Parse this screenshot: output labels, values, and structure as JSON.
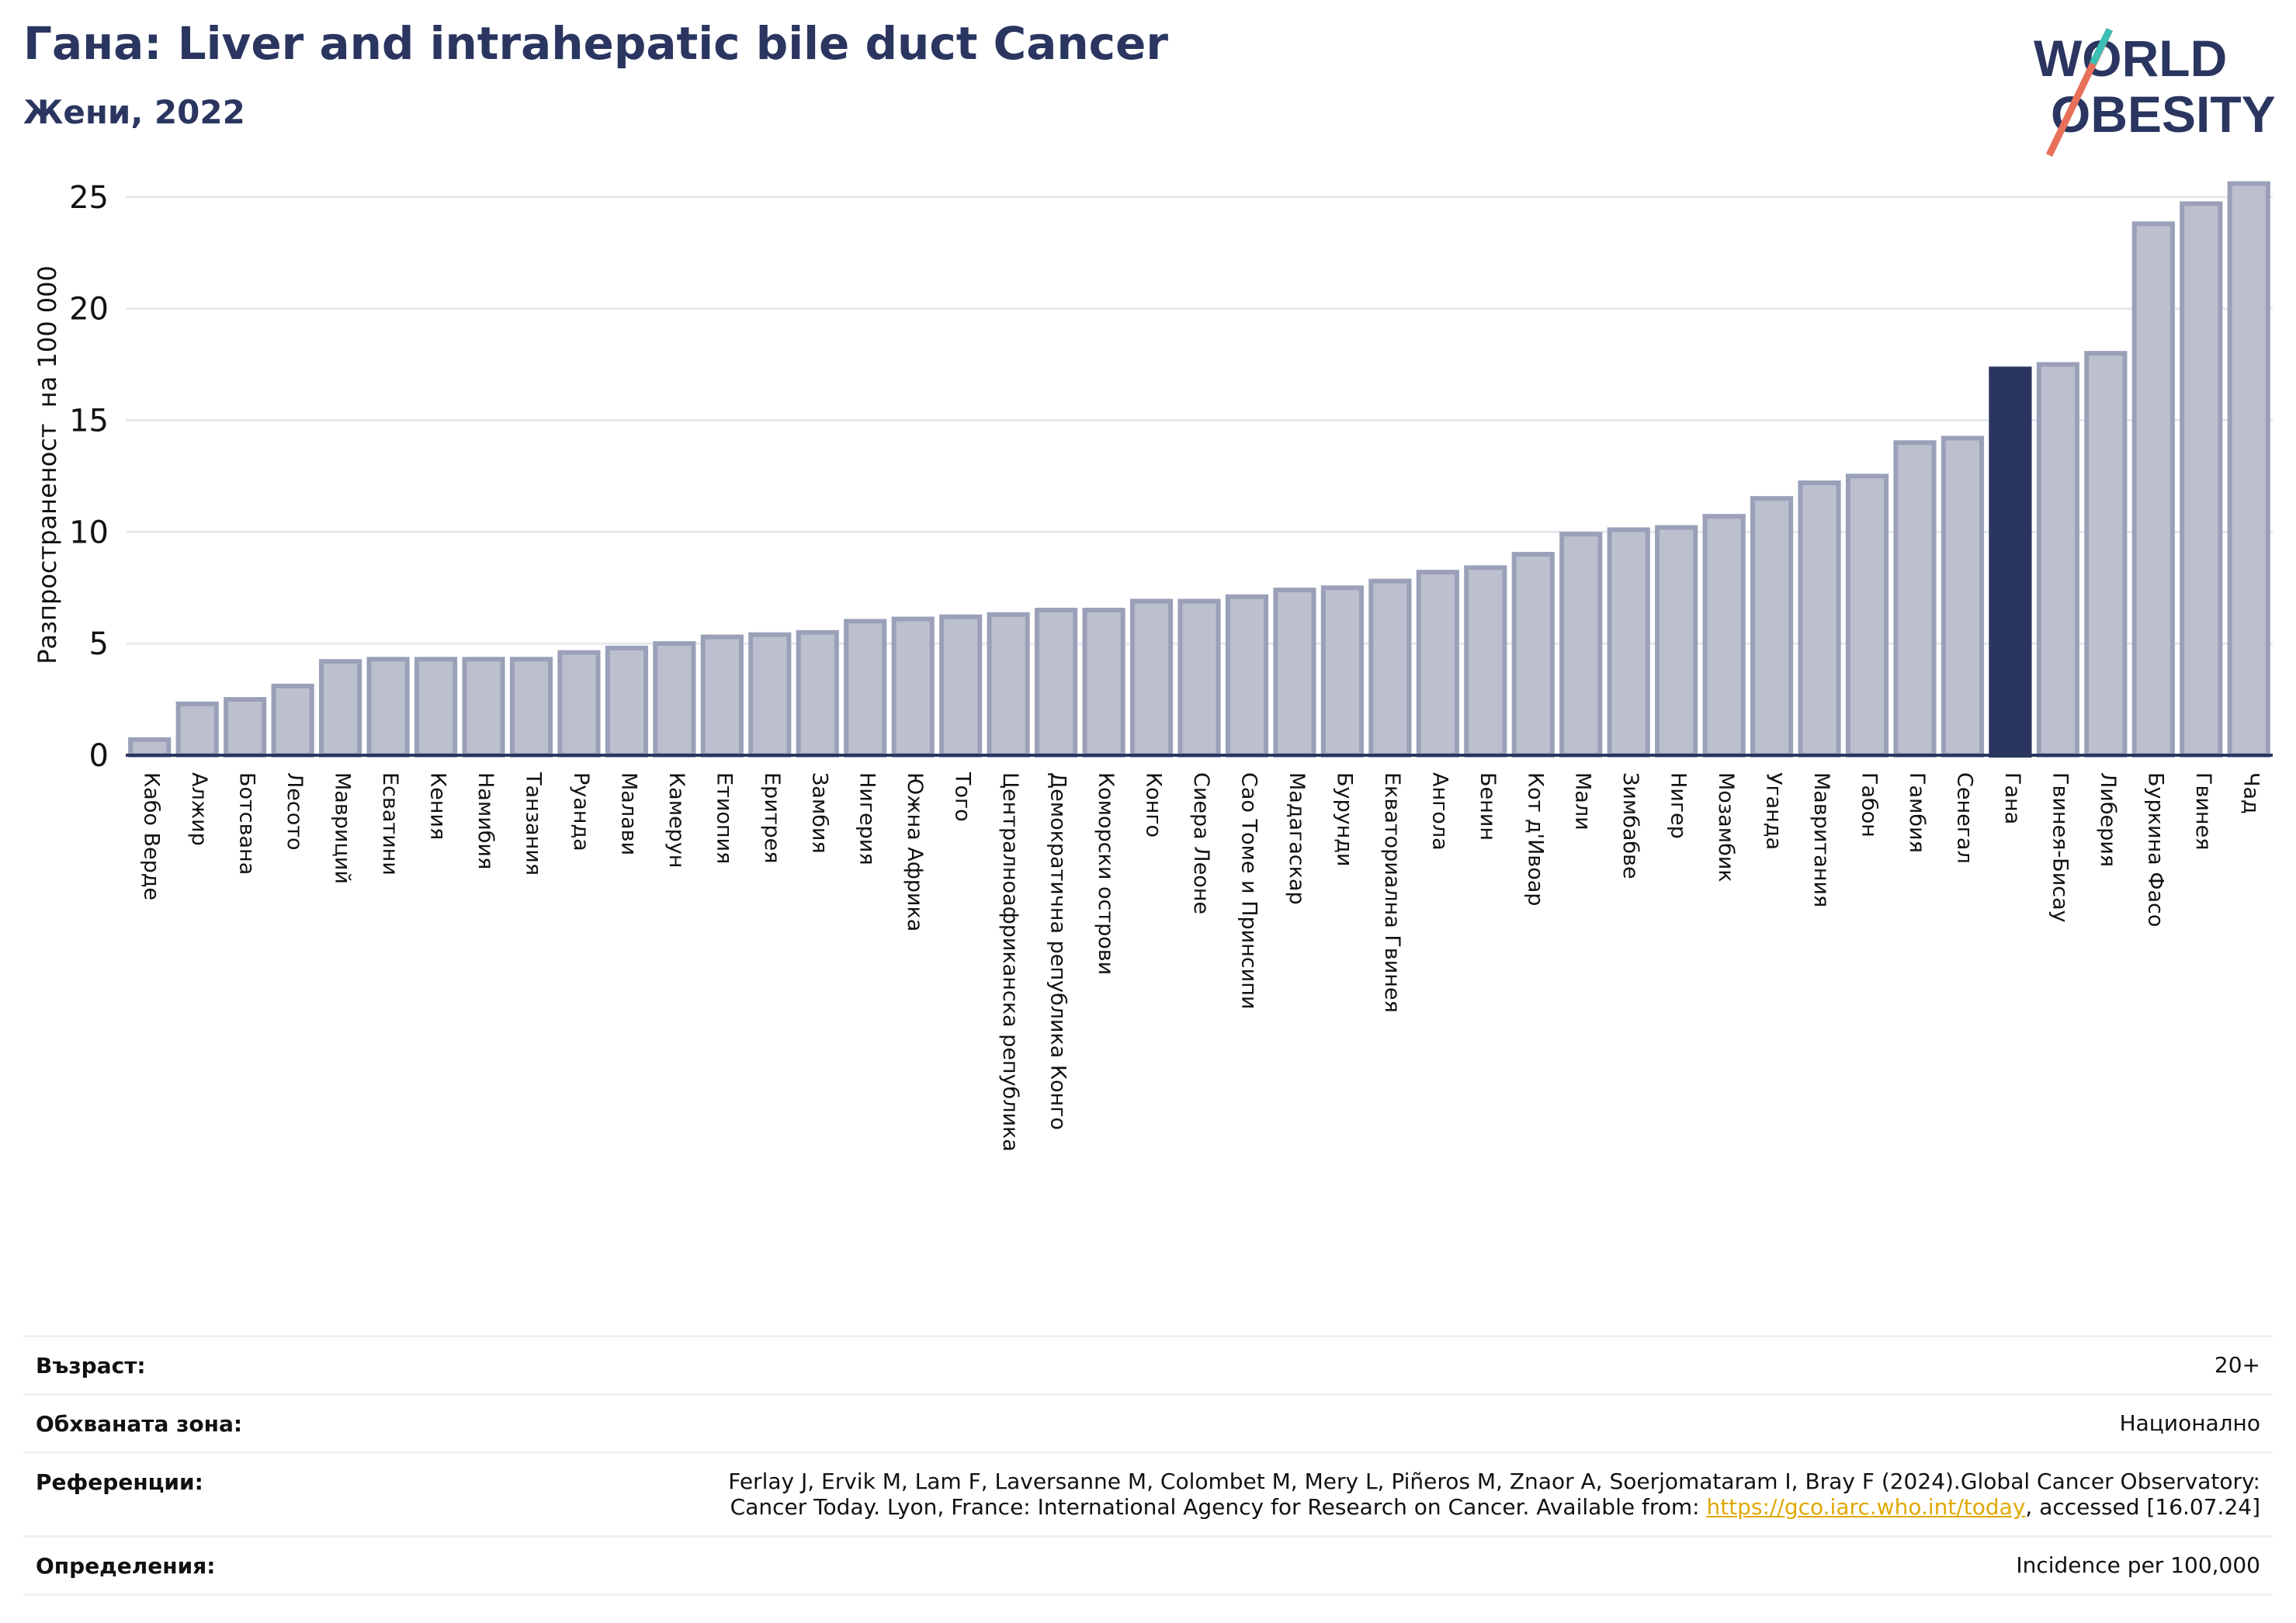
{
  "header": {
    "title": "Гана: Liver and intrahepatic bile duct Cancer",
    "subtitle": "Жени, 2022"
  },
  "logo": {
    "line1": "WORLD",
    "line2": "OBESITY"
  },
  "colors": {
    "highlight": "#2b3660",
    "bar": "#bcc0ce",
    "bar_edge": "#9aa0b8",
    "title": "#2a3560",
    "link": "#e0a800"
  },
  "chart_data": {
    "type": "bar",
    "ylabel": "Разпространеност  на 100 000",
    "ylim": [
      0,
      26
    ],
    "yticks": [
      0,
      5,
      10,
      15,
      20,
      25
    ],
    "highlight": "Гана",
    "grid": true,
    "categories": [
      "Кабо Верде",
      "Алжир",
      "Ботсвана",
      "Лесото",
      "Мавриций",
      "Есватини",
      "Кения",
      "Намибия",
      "Танзания",
      "Руанда",
      "Малави",
      "Камерун",
      "Етиопия",
      "Еритрея",
      "Замбия",
      "Нигерия",
      "Южна Африка",
      "Того",
      "Централноафриканска република",
      "Демократична република Конго",
      "Коморски острови",
      "Конго",
      "Сиера Леоне",
      "Сао Томе и Принсипи",
      "Мадагаскар",
      "Бурунди",
      "Екваториална Гвинея",
      "Ангола",
      "Бенин",
      "Кот д'Ивоар",
      "Мали",
      "Зимбабве",
      "Нигер",
      "Мозамбик",
      "Уганда",
      "Мавритания",
      "Габон",
      "Гамбия",
      "Сенегал",
      "Гана",
      "Гвинея-Бисау",
      "Либерия",
      "Буркина Фасо",
      "Гвинея",
      "Чад"
    ],
    "values": [
      0.7,
      2.3,
      2.5,
      3.1,
      4.2,
      4.3,
      4.3,
      4.3,
      4.3,
      4.6,
      4.8,
      5.0,
      5.3,
      5.4,
      5.5,
      6.0,
      6.1,
      6.2,
      6.3,
      6.5,
      6.5,
      6.9,
      6.9,
      7.1,
      7.4,
      7.5,
      7.8,
      8.2,
      8.4,
      9.0,
      9.9,
      10.1,
      10.2,
      10.7,
      11.5,
      12.2,
      12.5,
      14.0,
      14.2,
      17.3,
      17.5,
      18.0,
      23.8,
      24.7,
      25.6
    ]
  },
  "info": {
    "age_label": "Възраст:",
    "age_value": "20+",
    "area_label": "Обхваната зона:",
    "area_value": "Национално",
    "ref_label": "Референции:",
    "ref_text_1": "Ferlay J, Ervik M, Lam F, Laversanne M, Colombet M, Mery L, Piñeros M, Znaor A, Soerjomataram I, Bray F (2024).Global Cancer Observatory:",
    "ref_text_2": "Cancer Today. Lyon, France: International Agency for Research on Cancer. Available from: ",
    "ref_link": "https://gco.iarc.who.int/today",
    "ref_text_3": ", accessed [16.07.24]",
    "def_label": "Определения:",
    "def_value": "Incidence per 100,000"
  }
}
